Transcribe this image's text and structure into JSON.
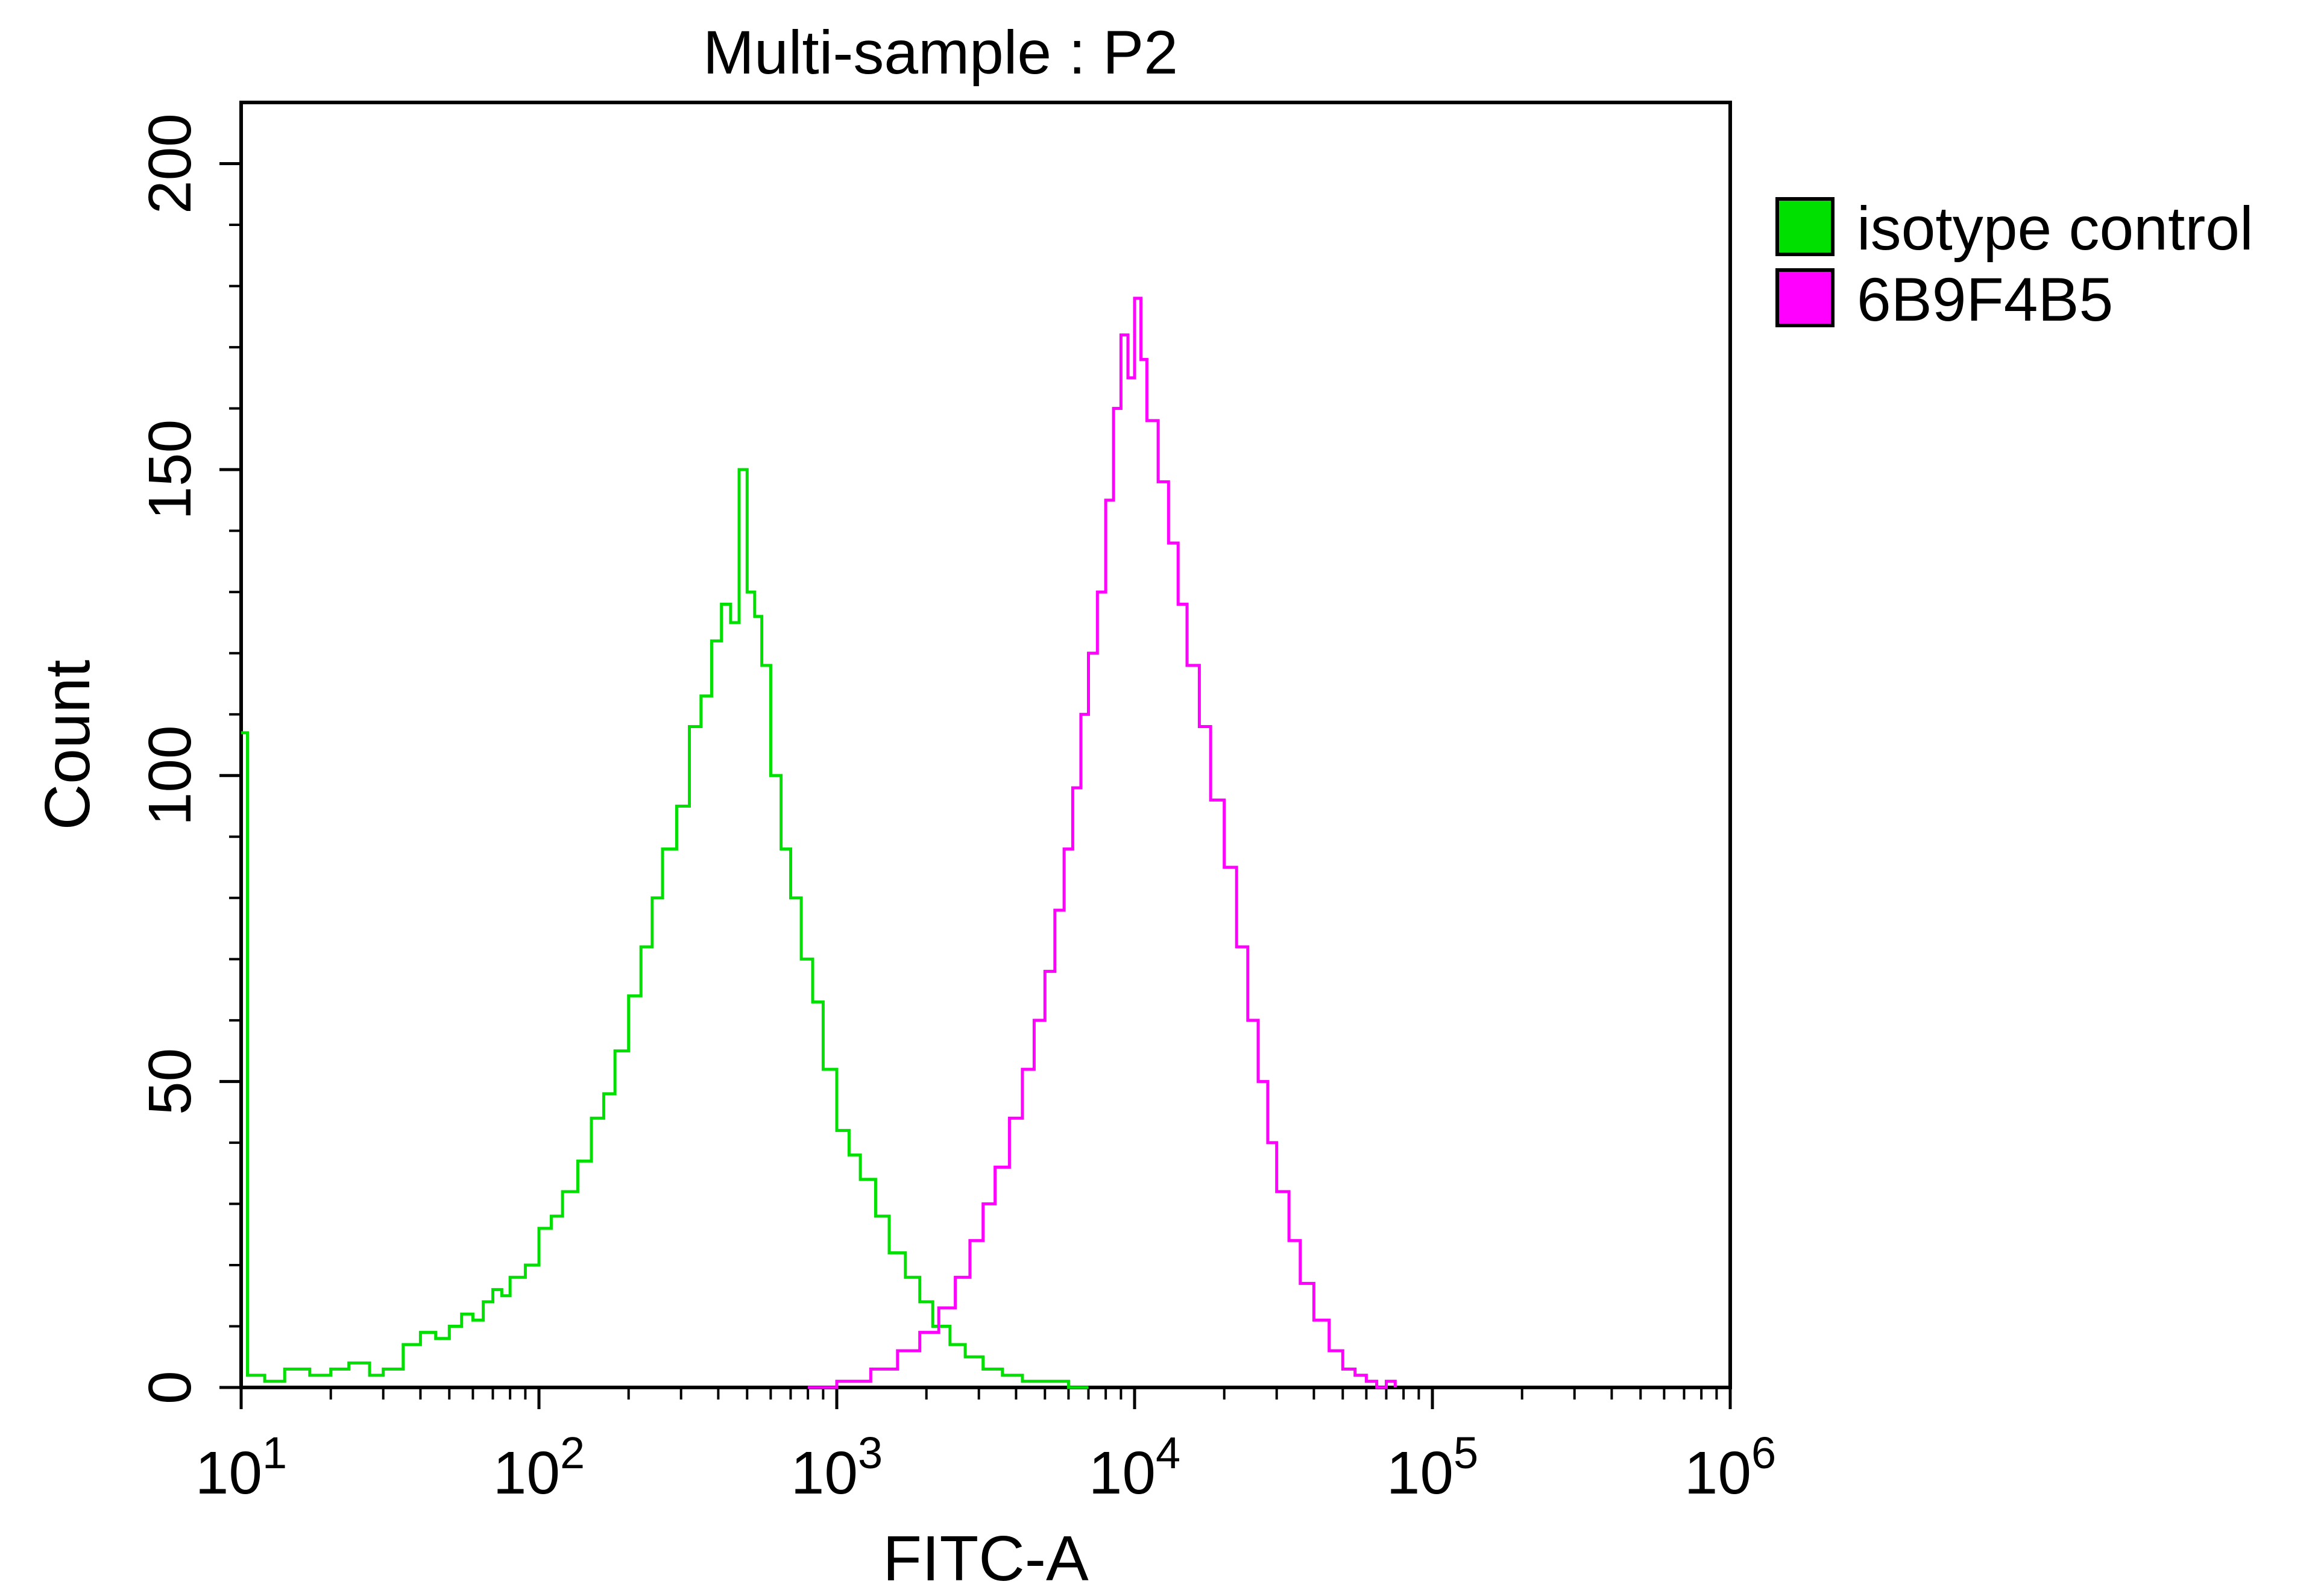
{
  "chart_data": {
    "type": "line",
    "title": "Multi-sample : P2",
    "xlabel": "FITC-A",
    "ylabel": "Count",
    "x_scale": "log",
    "xlim": [
      10,
      1000000
    ],
    "ylim": [
      0,
      210
    ],
    "x_ticks": [
      {
        "value": 10,
        "base": "10",
        "exp": "1"
      },
      {
        "value": 100,
        "base": "10",
        "exp": "2"
      },
      {
        "value": 1000,
        "base": "10",
        "exp": "3"
      },
      {
        "value": 10000,
        "base": "10",
        "exp": "4"
      },
      {
        "value": 100000,
        "base": "10",
        "exp": "5"
      },
      {
        "value": 1000000,
        "base": "10",
        "exp": "6"
      }
    ],
    "y_ticks": [
      {
        "value": 0,
        "label": "0"
      },
      {
        "value": 50,
        "label": "50"
      },
      {
        "value": 100,
        "label": "100"
      },
      {
        "value": 150,
        "label": "150"
      },
      {
        "value": 200,
        "label": "200"
      }
    ],
    "grid": false,
    "legend": "right",
    "series": [
      {
        "name": "isotype control",
        "color": "#00e000",
        "x": [
          10,
          10.5,
          12,
          14,
          17,
          20,
          23,
          27,
          30,
          35,
          40,
          45,
          50,
          55,
          60,
          65,
          70,
          75,
          80,
          90,
          100,
          110,
          120,
          135,
          150,
          165,
          180,
          200,
          220,
          240,
          260,
          290,
          320,
          350,
          380,
          410,
          440,
          470,
          500,
          530,
          560,
          600,
          650,
          700,
          760,
          830,
          900,
          1000,
          1100,
          1200,
          1350,
          1500,
          1700,
          1900,
          2100,
          2400,
          2700,
          3100,
          3600,
          4200,
          5000,
          6000,
          7000
        ],
        "y": [
          107,
          2,
          1,
          3,
          2,
          3,
          4,
          2,
          3,
          7,
          9,
          8,
          10,
          12,
          11,
          14,
          16,
          15,
          18,
          20,
          26,
          28,
          32,
          37,
          44,
          48,
          55,
          64,
          72,
          80,
          88,
          95,
          108,
          113,
          122,
          128,
          125,
          150,
          130,
          126,
          118,
          100,
          88,
          80,
          70,
          63,
          52,
          42,
          38,
          34,
          28,
          22,
          18,
          14,
          10,
          7,
          5,
          3,
          2,
          1,
          1,
          0,
          0
        ]
      },
      {
        "name": "6B9F4B5",
        "color": "#ff00ff",
        "x": [
          800,
          1000,
          1300,
          1600,
          1900,
          2200,
          2500,
          2800,
          3100,
          3400,
          3800,
          4200,
          4600,
          5000,
          5400,
          5800,
          6200,
          6600,
          7000,
          7500,
          8000,
          8500,
          9000,
          9500,
          10000,
          10500,
          11000,
          12000,
          13000,
          14000,
          15000,
          16500,
          18000,
          20000,
          22000,
          24000,
          26000,
          28000,
          30000,
          33000,
          36000,
          40000,
          45000,
          50000,
          55000,
          60000,
          65000,
          70000,
          75000
        ],
        "y": [
          0,
          1,
          3,
          6,
          9,
          13,
          18,
          24,
          30,
          36,
          44,
          52,
          60,
          68,
          78,
          88,
          98,
          110,
          120,
          130,
          145,
          160,
          172,
          165,
          178,
          168,
          158,
          148,
          138,
          128,
          118,
          108,
          96,
          85,
          72,
          60,
          50,
          40,
          32,
          24,
          17,
          11,
          6,
          3,
          2,
          1,
          0,
          1,
          0
        ]
      }
    ]
  }
}
